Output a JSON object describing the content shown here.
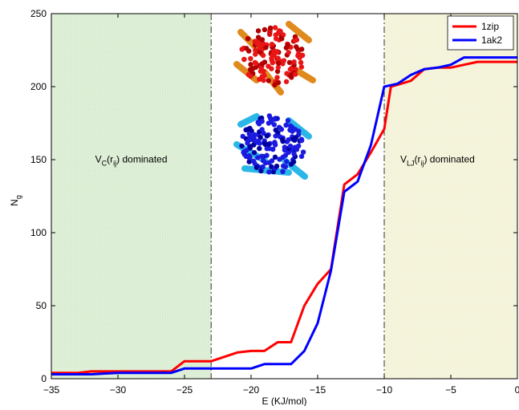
{
  "chart_data": {
    "type": "line",
    "xlabel": "E (KJ/mol)",
    "ylabel": "N",
    "ylabel_sub": "g",
    "xlim": [
      -35,
      0
    ],
    "ylim": [
      0,
      250
    ],
    "xticks": [
      -35,
      -30,
      -25,
      -20,
      -15,
      -10,
      -5,
      0
    ],
    "yticks": [
      0,
      50,
      100,
      150,
      200,
      250
    ],
    "grid": false,
    "legend_position": "top-right",
    "regions": [
      {
        "x_from": -35,
        "x_to": -23,
        "color": "#d8ecd0",
        "label": {
          "main": "V",
          "sub1": "C",
          "mid": "(r",
          "sub2": "ij",
          "end": ") dominated",
          "x": -29,
          "y": 148
        }
      },
      {
        "x_from": -10,
        "x_to": 0,
        "color": "#f3f2d6",
        "label": {
          "main": "V",
          "sub1": "LJ",
          "mid": "(r",
          "sub2": "ij",
          "end": ") dominated",
          "x": -6,
          "y": 148
        }
      }
    ],
    "vlines": [
      -23,
      -10
    ],
    "series": [
      {
        "name": "1zip",
        "color": "#ff0000",
        "x": [
          -35,
          -33,
          -32,
          -30,
          -28,
          -26,
          -25,
          -23,
          -22,
          -21,
          -20,
          -19,
          -18,
          -17,
          -16,
          -15,
          -14,
          -13,
          -12,
          -11,
          -10,
          -9.5,
          -8,
          -7,
          -6,
          -5,
          -4,
          -3,
          -2,
          -1,
          0
        ],
        "y": [
          4,
          4,
          5,
          5,
          5,
          5,
          12,
          12,
          15,
          18,
          19,
          19,
          25,
          25,
          50,
          65,
          75,
          133,
          140,
          155,
          171,
          200,
          204,
          212,
          213,
          213,
          215,
          217,
          217,
          217,
          217
        ]
      },
      {
        "name": "1ak2",
        "color": "#0000ff",
        "x": [
          -35,
          -32,
          -30,
          -28,
          -26,
          -25,
          -23,
          -20,
          -19,
          -18,
          -17,
          -16,
          -15,
          -14,
          -13,
          -12,
          -11,
          -10,
          -9.5,
          -9,
          -8,
          -7,
          -6,
          -5,
          -4,
          -3,
          -2,
          -1,
          0
        ],
        "y": [
          3,
          3,
          4,
          4,
          4,
          7,
          7,
          7,
          10,
          10,
          10,
          19,
          38,
          74,
          128,
          135,
          160,
          200,
          201,
          202,
          208,
          212,
          213,
          215,
          220,
          220,
          220,
          220,
          220
        ]
      }
    ]
  }
}
